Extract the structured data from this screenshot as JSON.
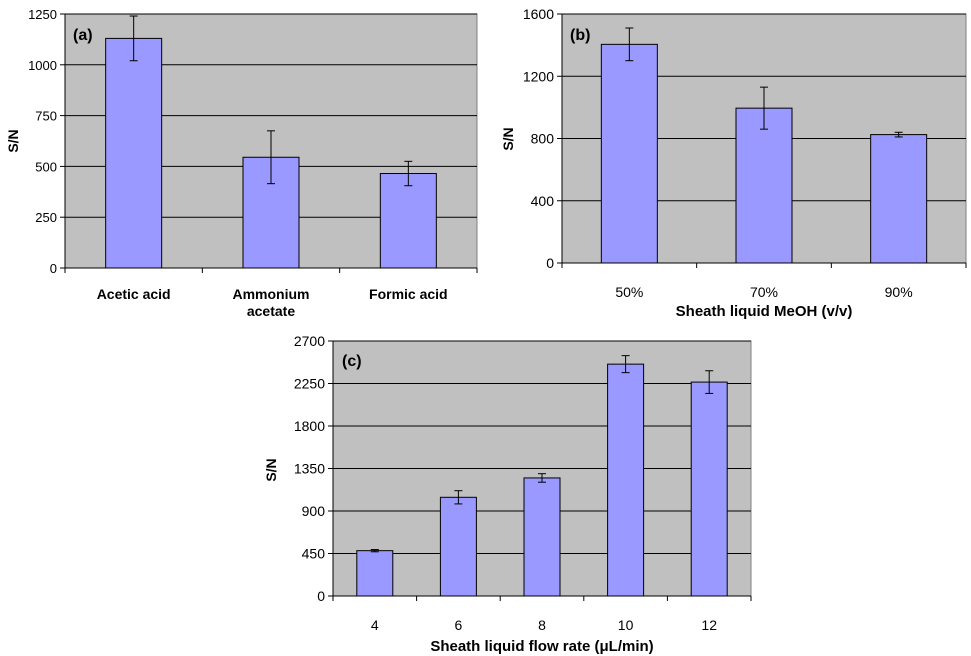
{
  "chart_data": [
    {
      "id": "a",
      "type": "bar",
      "panel_label": "(a)",
      "xlabel": "",
      "ylabel": "S/N",
      "categories": [
        [
          "Acetic acid"
        ],
        [
          "Ammonium",
          "acetate"
        ],
        [
          "Formic acid"
        ]
      ],
      "values": [
        1130,
        545,
        465
      ],
      "error": [
        110,
        130,
        60
      ],
      "ylim": [
        0,
        1250
      ],
      "yticks": [
        0,
        250,
        500,
        750,
        1000,
        1250
      ],
      "grid": true,
      "bar_color": "#9999ff",
      "plot_bg": "#c0c0c0"
    },
    {
      "id": "b",
      "type": "bar",
      "panel_label": "(b)",
      "xlabel": "Sheath liquid MeOH (v/v)",
      "ylabel": "S/N",
      "categories": [
        [
          "50%"
        ],
        [
          "70%"
        ],
        [
          "90%"
        ]
      ],
      "values": [
        1405,
        995,
        825
      ],
      "error": [
        105,
        135,
        15
      ],
      "ylim": [
        0,
        1600
      ],
      "yticks": [
        0,
        400,
        800,
        1200,
        1600
      ],
      "grid": true,
      "bar_color": "#9999ff",
      "plot_bg": "#c0c0c0"
    },
    {
      "id": "c",
      "type": "bar",
      "panel_label": "(c)",
      "xlabel": "Sheath liquid flow rate (μL/min)",
      "ylabel": "S/N",
      "categories": [
        [
          "4"
        ],
        [
          "6"
        ],
        [
          "8"
        ],
        [
          "10"
        ],
        [
          "12"
        ]
      ],
      "values": [
        480,
        1045,
        1250,
        2455,
        2265
      ],
      "error": [
        12,
        70,
        45,
        90,
        120
      ],
      "ylim": [
        0,
        2700
      ],
      "yticks": [
        0,
        450,
        900,
        1350,
        1800,
        2250,
        2700
      ],
      "grid": true,
      "bar_color": "#9999ff",
      "plot_bg": "#c0c0c0"
    }
  ]
}
